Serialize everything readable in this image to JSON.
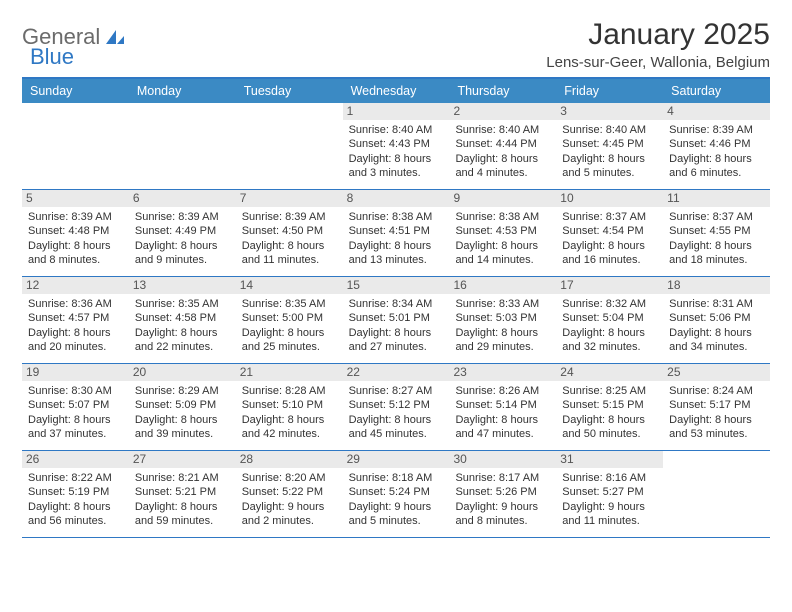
{
  "logo": {
    "text_general": "General",
    "text_blue": "Blue"
  },
  "title": "January 2025",
  "location": "Lens-sur-Geer, Wallonia, Belgium",
  "colors": {
    "header_bar": "#3b8ac4",
    "border": "#2f78c4",
    "daynum_bg": "#eaeaea",
    "text": "#333333",
    "logo_gray": "#6b6b6b",
    "logo_blue": "#2f78c4"
  },
  "day_names": [
    "Sunday",
    "Monday",
    "Tuesday",
    "Wednesday",
    "Thursday",
    "Friday",
    "Saturday"
  ],
  "weeks": [
    [
      {
        "empty": true
      },
      {
        "empty": true
      },
      {
        "empty": true
      },
      {
        "day": "1",
        "sunrise": "Sunrise: 8:40 AM",
        "sunset": "Sunset: 4:43 PM",
        "dl1": "Daylight: 8 hours",
        "dl2": "and 3 minutes."
      },
      {
        "day": "2",
        "sunrise": "Sunrise: 8:40 AM",
        "sunset": "Sunset: 4:44 PM",
        "dl1": "Daylight: 8 hours",
        "dl2": "and 4 minutes."
      },
      {
        "day": "3",
        "sunrise": "Sunrise: 8:40 AM",
        "sunset": "Sunset: 4:45 PM",
        "dl1": "Daylight: 8 hours",
        "dl2": "and 5 minutes."
      },
      {
        "day": "4",
        "sunrise": "Sunrise: 8:39 AM",
        "sunset": "Sunset: 4:46 PM",
        "dl1": "Daylight: 8 hours",
        "dl2": "and 6 minutes."
      }
    ],
    [
      {
        "day": "5",
        "sunrise": "Sunrise: 8:39 AM",
        "sunset": "Sunset: 4:48 PM",
        "dl1": "Daylight: 8 hours",
        "dl2": "and 8 minutes."
      },
      {
        "day": "6",
        "sunrise": "Sunrise: 8:39 AM",
        "sunset": "Sunset: 4:49 PM",
        "dl1": "Daylight: 8 hours",
        "dl2": "and 9 minutes."
      },
      {
        "day": "7",
        "sunrise": "Sunrise: 8:39 AM",
        "sunset": "Sunset: 4:50 PM",
        "dl1": "Daylight: 8 hours",
        "dl2": "and 11 minutes."
      },
      {
        "day": "8",
        "sunrise": "Sunrise: 8:38 AM",
        "sunset": "Sunset: 4:51 PM",
        "dl1": "Daylight: 8 hours",
        "dl2": "and 13 minutes."
      },
      {
        "day": "9",
        "sunrise": "Sunrise: 8:38 AM",
        "sunset": "Sunset: 4:53 PM",
        "dl1": "Daylight: 8 hours",
        "dl2": "and 14 minutes."
      },
      {
        "day": "10",
        "sunrise": "Sunrise: 8:37 AM",
        "sunset": "Sunset: 4:54 PM",
        "dl1": "Daylight: 8 hours",
        "dl2": "and 16 minutes."
      },
      {
        "day": "11",
        "sunrise": "Sunrise: 8:37 AM",
        "sunset": "Sunset: 4:55 PM",
        "dl1": "Daylight: 8 hours",
        "dl2": "and 18 minutes."
      }
    ],
    [
      {
        "day": "12",
        "sunrise": "Sunrise: 8:36 AM",
        "sunset": "Sunset: 4:57 PM",
        "dl1": "Daylight: 8 hours",
        "dl2": "and 20 minutes."
      },
      {
        "day": "13",
        "sunrise": "Sunrise: 8:35 AM",
        "sunset": "Sunset: 4:58 PM",
        "dl1": "Daylight: 8 hours",
        "dl2": "and 22 minutes."
      },
      {
        "day": "14",
        "sunrise": "Sunrise: 8:35 AM",
        "sunset": "Sunset: 5:00 PM",
        "dl1": "Daylight: 8 hours",
        "dl2": "and 25 minutes."
      },
      {
        "day": "15",
        "sunrise": "Sunrise: 8:34 AM",
        "sunset": "Sunset: 5:01 PM",
        "dl1": "Daylight: 8 hours",
        "dl2": "and 27 minutes."
      },
      {
        "day": "16",
        "sunrise": "Sunrise: 8:33 AM",
        "sunset": "Sunset: 5:03 PM",
        "dl1": "Daylight: 8 hours",
        "dl2": "and 29 minutes."
      },
      {
        "day": "17",
        "sunrise": "Sunrise: 8:32 AM",
        "sunset": "Sunset: 5:04 PM",
        "dl1": "Daylight: 8 hours",
        "dl2": "and 32 minutes."
      },
      {
        "day": "18",
        "sunrise": "Sunrise: 8:31 AM",
        "sunset": "Sunset: 5:06 PM",
        "dl1": "Daylight: 8 hours",
        "dl2": "and 34 minutes."
      }
    ],
    [
      {
        "day": "19",
        "sunrise": "Sunrise: 8:30 AM",
        "sunset": "Sunset: 5:07 PM",
        "dl1": "Daylight: 8 hours",
        "dl2": "and 37 minutes."
      },
      {
        "day": "20",
        "sunrise": "Sunrise: 8:29 AM",
        "sunset": "Sunset: 5:09 PM",
        "dl1": "Daylight: 8 hours",
        "dl2": "and 39 minutes."
      },
      {
        "day": "21",
        "sunrise": "Sunrise: 8:28 AM",
        "sunset": "Sunset: 5:10 PM",
        "dl1": "Daylight: 8 hours",
        "dl2": "and 42 minutes."
      },
      {
        "day": "22",
        "sunrise": "Sunrise: 8:27 AM",
        "sunset": "Sunset: 5:12 PM",
        "dl1": "Daylight: 8 hours",
        "dl2": "and 45 minutes."
      },
      {
        "day": "23",
        "sunrise": "Sunrise: 8:26 AM",
        "sunset": "Sunset: 5:14 PM",
        "dl1": "Daylight: 8 hours",
        "dl2": "and 47 minutes."
      },
      {
        "day": "24",
        "sunrise": "Sunrise: 8:25 AM",
        "sunset": "Sunset: 5:15 PM",
        "dl1": "Daylight: 8 hours",
        "dl2": "and 50 minutes."
      },
      {
        "day": "25",
        "sunrise": "Sunrise: 8:24 AM",
        "sunset": "Sunset: 5:17 PM",
        "dl1": "Daylight: 8 hours",
        "dl2": "and 53 minutes."
      }
    ],
    [
      {
        "day": "26",
        "sunrise": "Sunrise: 8:22 AM",
        "sunset": "Sunset: 5:19 PM",
        "dl1": "Daylight: 8 hours",
        "dl2": "and 56 minutes."
      },
      {
        "day": "27",
        "sunrise": "Sunrise: 8:21 AM",
        "sunset": "Sunset: 5:21 PM",
        "dl1": "Daylight: 8 hours",
        "dl2": "and 59 minutes."
      },
      {
        "day": "28",
        "sunrise": "Sunrise: 8:20 AM",
        "sunset": "Sunset: 5:22 PM",
        "dl1": "Daylight: 9 hours",
        "dl2": "and 2 minutes."
      },
      {
        "day": "29",
        "sunrise": "Sunrise: 8:18 AM",
        "sunset": "Sunset: 5:24 PM",
        "dl1": "Daylight: 9 hours",
        "dl2": "and 5 minutes."
      },
      {
        "day": "30",
        "sunrise": "Sunrise: 8:17 AM",
        "sunset": "Sunset: 5:26 PM",
        "dl1": "Daylight: 9 hours",
        "dl2": "and 8 minutes."
      },
      {
        "day": "31",
        "sunrise": "Sunrise: 8:16 AM",
        "sunset": "Sunset: 5:27 PM",
        "dl1": "Daylight: 9 hours",
        "dl2": "and 11 minutes."
      },
      {
        "empty": true
      }
    ]
  ]
}
